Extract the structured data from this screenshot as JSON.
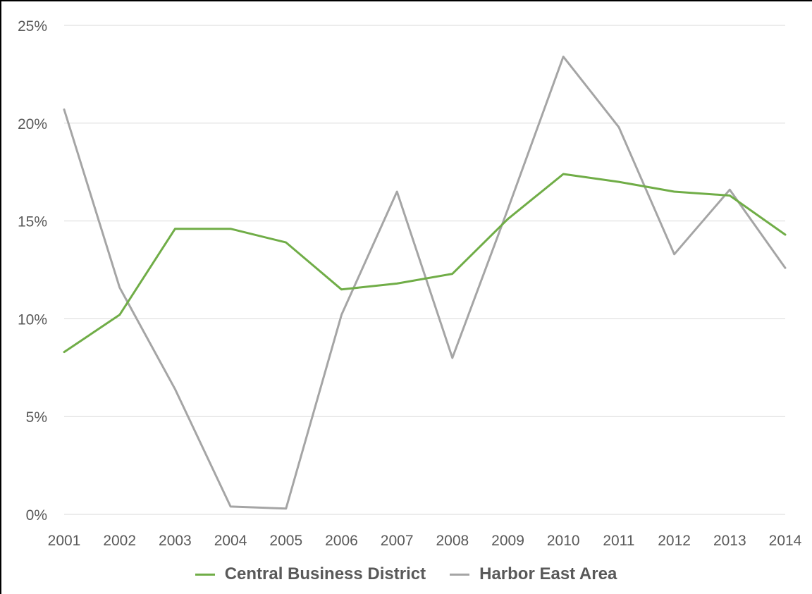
{
  "chart_data": {
    "type": "line",
    "title": "",
    "xlabel": "",
    "ylabel": "",
    "x": [
      "2001",
      "2002",
      "2003",
      "2004",
      "2005",
      "2006",
      "2007",
      "2008",
      "2009",
      "2010",
      "2011",
      "2012",
      "2013",
      "2014"
    ],
    "ylim": [
      0,
      25
    ],
    "yticks": [
      0,
      5,
      10,
      15,
      20,
      25
    ],
    "ytick_labels": [
      "0%",
      "5%",
      "10%",
      "15%",
      "20%",
      "25%"
    ],
    "grid": true,
    "legend_position": "bottom",
    "series": [
      {
        "name": "Central Business District",
        "color": "#70AD47",
        "values": [
          8.3,
          10.2,
          14.6,
          14.6,
          13.9,
          11.5,
          11.8,
          12.3,
          15.1,
          17.4,
          17.0,
          16.5,
          16.3,
          14.3
        ]
      },
      {
        "name": "Harbor East Area",
        "color": "#A5A5A5",
        "values": [
          20.7,
          11.6,
          6.4,
          0.4,
          0.3,
          10.2,
          16.5,
          8.0,
          15.6,
          23.4,
          19.8,
          13.3,
          16.6,
          12.6
        ]
      }
    ]
  }
}
